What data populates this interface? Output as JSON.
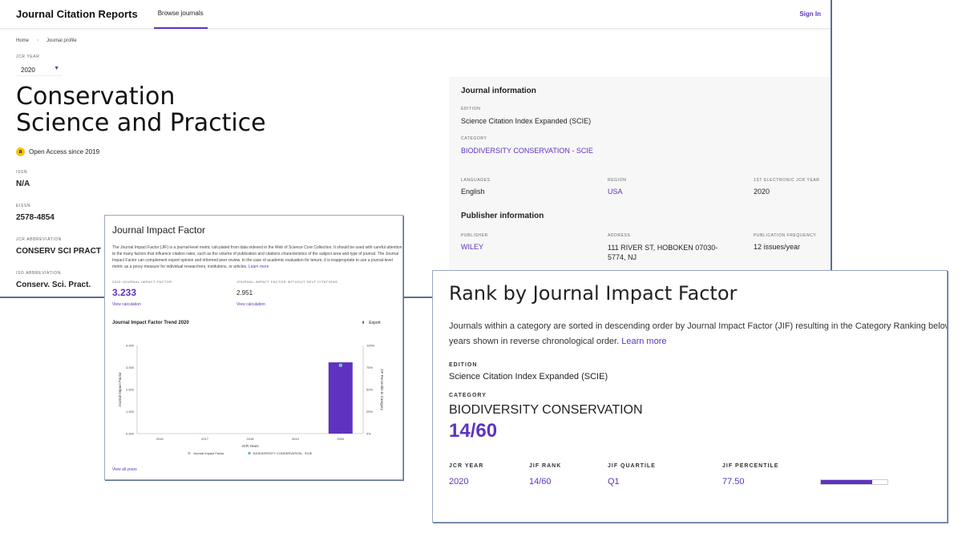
{
  "app": {
    "brand": "Journal Citation Reports",
    "nav_tab": "Browse journals",
    "sign_in": "Sign In"
  },
  "breadcrumb": [
    "Home",
    "Journal profile"
  ],
  "jcr_year": {
    "label": "JCR YEAR",
    "selected": "2020"
  },
  "journal": {
    "title": "Conservation Science and Practice",
    "open_access": "Open Access since 2019",
    "issn_label": "ISSN",
    "issn": "N/A",
    "eissn_label": "EISSN",
    "eissn": "2578-4854",
    "jcr_abbrev_label": "JCR ABBREVIATION",
    "jcr_abbrev": "CONSERV SCI PRACT",
    "iso_abbrev_label": "ISO ABBREVIATION",
    "iso_abbrev": "Conserv. Sci. Pract."
  },
  "info_panel": {
    "journal_info_title": "Journal information",
    "edition_label": "EDITION",
    "edition": "Science Citation Index Expanded (SCIE)",
    "category_label": "CATEGORY",
    "category": "BIODIVERSITY CONSERVATION - SCIE",
    "languages_label": "LANGUAGES",
    "languages": "English",
    "region_label": "REGION",
    "region": "USA",
    "first_year_label": "1ST ELECTRONIC JCR YEAR",
    "first_year": "2020",
    "publisher_info_title": "Publisher information",
    "publisher_label": "PUBLISHER",
    "publisher": "WILEY",
    "address_label": "ADDRESS",
    "address": "111 RIVER ST, HOBOKEN 07030-5774, NJ",
    "frequency_label": "PUBLICATION FREQUENCY",
    "frequency": "12 issues/year"
  },
  "jif_card": {
    "title": "Journal Impact Factor",
    "description": "The Journal Impact Factor (JIF) is a journal-level metric calculated from data indexed in the Web of Science Core Collection. It should be used with careful attention to the many factors that influence citation rates, such as the volume of publication and citations characteristics of the subject area and type of journal. The Journal Impact Factor can complement expert opinion and informed peer review. In the case of academic evaluation for tenure, it is inappropriate to use a journal-level metric as a proxy measure for individual researchers, institutions, or articles.",
    "learn_more": "Learn more",
    "jif_label": "2020 JOURNAL IMPACT FACTOR",
    "jif_value": "3.233",
    "jif_without_label": "JOURNAL IMPACT FACTOR WITHOUT SELF CITATIONS",
    "jif_without_value": "2.951",
    "view_calc_1": "View calculation",
    "view_calc_2": "View calculation",
    "trend_title": "Journal Impact Factor Trend 2020",
    "export": "Export",
    "view_all": "View all years"
  },
  "chart_data": {
    "type": "bar",
    "title": "Journal Impact Factor Trend 2020",
    "xlabel": "JCR Years",
    "ylabel": "Journal Impact Factor",
    "y2label": "JIF Percentile in Category",
    "categories": [
      "2016",
      "2017",
      "2018",
      "2019",
      "2020"
    ],
    "values": [
      null,
      null,
      null,
      null,
      3.233
    ],
    "percentile": [
      null,
      null,
      null,
      null,
      77.5
    ],
    "ylim": [
      0,
      4
    ],
    "y_ticks": [
      "0.000",
      "1.000",
      "2.000",
      "3.000",
      "4.000"
    ],
    "y2_ticks": [
      "0%",
      "25%",
      "50%",
      "75%",
      "100%"
    ],
    "legend": [
      "Journal Impact Factor",
      "BIODIVERSITY CONSERVATION - SCIE"
    ],
    "bar_color": "#5e33bf",
    "point_color": "#4fb3c9"
  },
  "rank_card": {
    "title": "Rank by Journal Impact Factor",
    "description_line1": "Journals within a category are sorted in descending order by Journal Impact Factor (JIF) resulting in the Category Ranking below. A separate rank is shown for each category in which the journal is listed in JCR. Data for the most recent year is presented at the top of the list, with other",
    "description_line2": "years shown in reverse chronological order.",
    "learn_more": "Learn more",
    "edition_label": "EDITION",
    "edition": "Science Citation Index Expanded (SCIE)",
    "category_label": "CATEGORY",
    "category": "BIODIVERSITY CONSERVATION",
    "rank": "14/60",
    "table_headers": [
      "JCR YEAR",
      "JIF RANK",
      "JIF QUARTILE",
      "JIF PERCENTILE"
    ],
    "row": {
      "year": "2020",
      "rank": "14/60",
      "quartile": "Q1",
      "percentile": "77.50"
    },
    "percentile_fraction": 0.775
  },
  "colors": {
    "accent": "#5e33bf",
    "panel_bg": "#f7f7f7",
    "oa_badge": "#f5c518"
  }
}
